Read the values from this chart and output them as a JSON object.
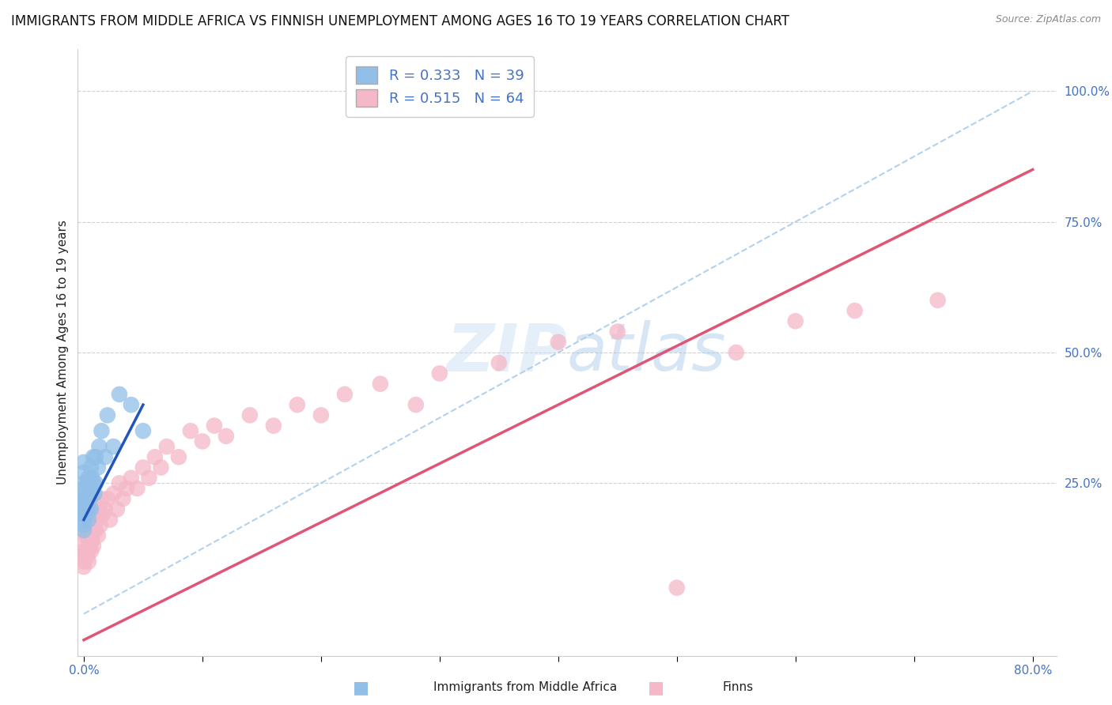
{
  "title": "IMMIGRANTS FROM MIDDLE AFRICA VS FINNISH UNEMPLOYMENT AMONG AGES 16 TO 19 YEARS CORRELATION CHART",
  "source": "Source: ZipAtlas.com",
  "ylabel": "Unemployment Among Ages 16 to 19 years",
  "xlim": [
    -0.005,
    0.82
  ],
  "ylim": [
    -0.08,
    1.08
  ],
  "y_ticks": [
    0.0,
    0.25,
    0.5,
    0.75,
    1.0
  ],
  "y_tick_labels": [
    "",
    "25.0%",
    "50.0%",
    "75.0%",
    "100.0%"
  ],
  "x_tick_labels_show": [
    "0.0%",
    "80.0%"
  ],
  "grid_color": "#d0d0d0",
  "background_color": "#ffffff",
  "blue_color": "#91bfe8",
  "pink_color": "#f4b8c8",
  "blue_line_color": "#2255bb",
  "pink_line_color": "#e05575",
  "dash_line_color": "#aaccee",
  "R_blue": "0.333",
  "N_blue": "39",
  "R_pink": "0.515",
  "N_pink": "64",
  "legend_label_blue": "Immigrants from Middle Africa",
  "legend_label_pink": "Finns",
  "title_fontsize": 12,
  "axis_label_fontsize": 11,
  "tick_fontsize": 11,
  "legend_fontsize": 13,
  "tick_color": "#4472c4",
  "label_color": "#222222",
  "blue_scatter_x": [
    0.0,
    0.0,
    0.0,
    0.0,
    0.0,
    0.0,
    0.0,
    0.0,
    0.0,
    0.0,
    0.0,
    0.0,
    0.002,
    0.002,
    0.002,
    0.003,
    0.003,
    0.004,
    0.004,
    0.004,
    0.005,
    0.005,
    0.006,
    0.006,
    0.007,
    0.008,
    0.008,
    0.009,
    0.01,
    0.01,
    0.012,
    0.013,
    0.015,
    0.018,
    0.02,
    0.025,
    0.03,
    0.04,
    0.05
  ],
  "blue_scatter_y": [
    0.16,
    0.17,
    0.18,
    0.19,
    0.2,
    0.21,
    0.22,
    0.23,
    0.24,
    0.25,
    0.27,
    0.29,
    0.2,
    0.22,
    0.19,
    0.25,
    0.22,
    0.2,
    0.26,
    0.18,
    0.22,
    0.24,
    0.28,
    0.2,
    0.26,
    0.3,
    0.25,
    0.23,
    0.3,
    0.25,
    0.28,
    0.32,
    0.35,
    0.3,
    0.38,
    0.32,
    0.42,
    0.4,
    0.35
  ],
  "pink_scatter_x": [
    0.0,
    0.0,
    0.0,
    0.0,
    0.0,
    0.002,
    0.002,
    0.003,
    0.003,
    0.004,
    0.004,
    0.005,
    0.005,
    0.006,
    0.006,
    0.007,
    0.007,
    0.008,
    0.008,
    0.009,
    0.01,
    0.01,
    0.011,
    0.012,
    0.013,
    0.014,
    0.015,
    0.016,
    0.018,
    0.02,
    0.022,
    0.025,
    0.028,
    0.03,
    0.033,
    0.036,
    0.04,
    0.045,
    0.05,
    0.055,
    0.06,
    0.065,
    0.07,
    0.08,
    0.09,
    0.1,
    0.11,
    0.12,
    0.14,
    0.16,
    0.18,
    0.2,
    0.22,
    0.25,
    0.28,
    0.3,
    0.35,
    0.4,
    0.45,
    0.5,
    0.55,
    0.6,
    0.65,
    0.72
  ],
  "pink_scatter_y": [
    0.12,
    0.14,
    0.1,
    0.09,
    0.11,
    0.15,
    0.12,
    0.16,
    0.11,
    0.14,
    0.1,
    0.18,
    0.13,
    0.16,
    0.12,
    0.15,
    0.14,
    0.18,
    0.13,
    0.16,
    0.2,
    0.16,
    0.18,
    0.15,
    0.2,
    0.17,
    0.22,
    0.19,
    0.2,
    0.22,
    0.18,
    0.23,
    0.2,
    0.25,
    0.22,
    0.24,
    0.26,
    0.24,
    0.28,
    0.26,
    0.3,
    0.28,
    0.32,
    0.3,
    0.35,
    0.33,
    0.36,
    0.34,
    0.38,
    0.36,
    0.4,
    0.38,
    0.42,
    0.44,
    0.4,
    0.46,
    0.48,
    0.52,
    0.54,
    0.05,
    0.5,
    0.56,
    0.58,
    0.6
  ],
  "pink_line_x0": 0.0,
  "pink_line_y0": -0.05,
  "pink_line_x1": 0.8,
  "pink_line_y1": 0.85,
  "blue_line_x0": 0.0,
  "blue_line_y0": 0.18,
  "blue_line_x1": 0.05,
  "blue_line_y1": 0.4
}
